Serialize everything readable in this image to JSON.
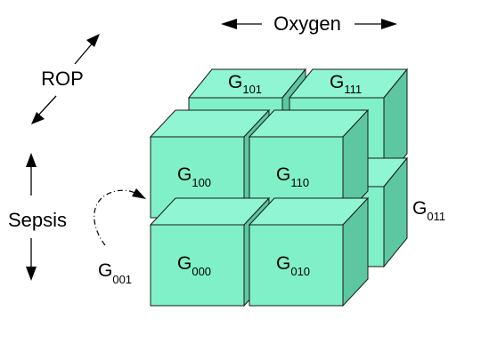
{
  "axes": {
    "oxygen": "Oxygen",
    "rop": "ROP",
    "sepsis": "Sepsis"
  },
  "cubes": {
    "g101": {
      "base": "G",
      "sub": "101"
    },
    "g111": {
      "base": "G",
      "sub": "111"
    },
    "g100": {
      "base": "G",
      "sub": "100"
    },
    "g110": {
      "base": "G",
      "sub": "110"
    },
    "g000": {
      "base": "G",
      "sub": "000"
    },
    "g010": {
      "base": "G",
      "sub": "010"
    },
    "g011": {
      "base": "G",
      "sub": "011"
    },
    "g001": {
      "base": "G",
      "sub": "001"
    }
  },
  "colors": {
    "front": "#7ff0c8",
    "top": "#8ff5d2",
    "side": "#5cc7a0"
  }
}
